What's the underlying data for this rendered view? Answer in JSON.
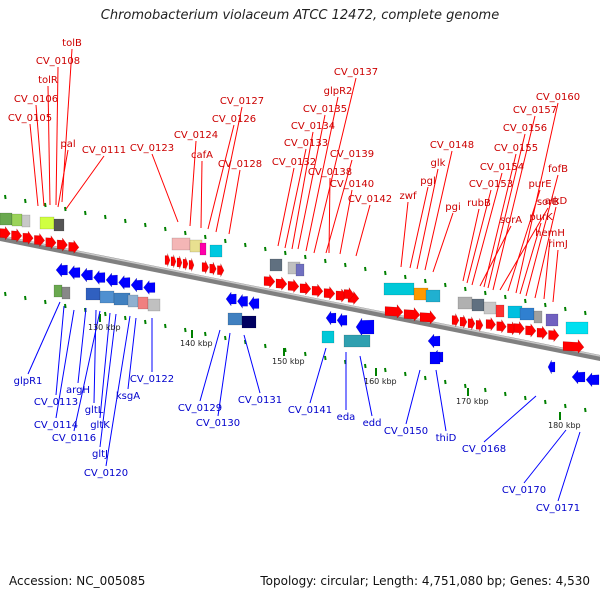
{
  "title": "Chromobacterium violaceum ATCC 12472, complete genome",
  "footer": {
    "accession": "Accession: NC_005085",
    "summary": "Topology: circular; Length: 4,751,080 bp; Genes: 4,530"
  },
  "scale_labels": [
    "130 kbp",
    "140 kbp",
    "150 kbp",
    "160 kbp",
    "170 kbp",
    "180 kbp"
  ],
  "forward_genes": [
    "tolB",
    "CV_0108",
    "tolR",
    "CV_0106",
    "CV_0105",
    "pal",
    "CV_0111",
    "CV_0123",
    "CV_0124",
    "cafA",
    "CV_0126",
    "CV_0127",
    "CV_0128",
    "CV_0132",
    "CV_0133",
    "CV_0134",
    "CV_0135",
    "glpR2",
    "CV_0137",
    "CV_0138",
    "CV_0139",
    "CV_0140",
    "CV_0142",
    "zwf",
    "pgl",
    "glk",
    "CV_0148",
    "pgi",
    "rubB",
    "CV_0153",
    "CV_0154",
    "sorA",
    "CV_0155",
    "CV_0156",
    "CV_0157",
    "sorB",
    "purE",
    "CV_0160",
    "purK",
    "fofB",
    "alkD",
    "hemH",
    "rimJ"
  ],
  "reverse_genes": [
    "glpR1",
    "CV_0113",
    "CV_0114",
    "argH",
    "gltL",
    "CV_0116",
    "gltK",
    "gltJ",
    "CV_0120",
    "ksgA",
    "CV_0122",
    "CV_0129",
    "CV_0130",
    "CV_0131",
    "CV_0141",
    "eda",
    "edd",
    "CV_0150",
    "thiD",
    "CV_0168",
    "CV_0170",
    "CV_0171"
  ],
  "colors": {
    "forward": "#ff0000",
    "reverse": "#0000ff",
    "backbone": "#808080",
    "tick": "#008000",
    "label_forward": "#cc0000",
    "label_reverse": "#0000cc"
  }
}
